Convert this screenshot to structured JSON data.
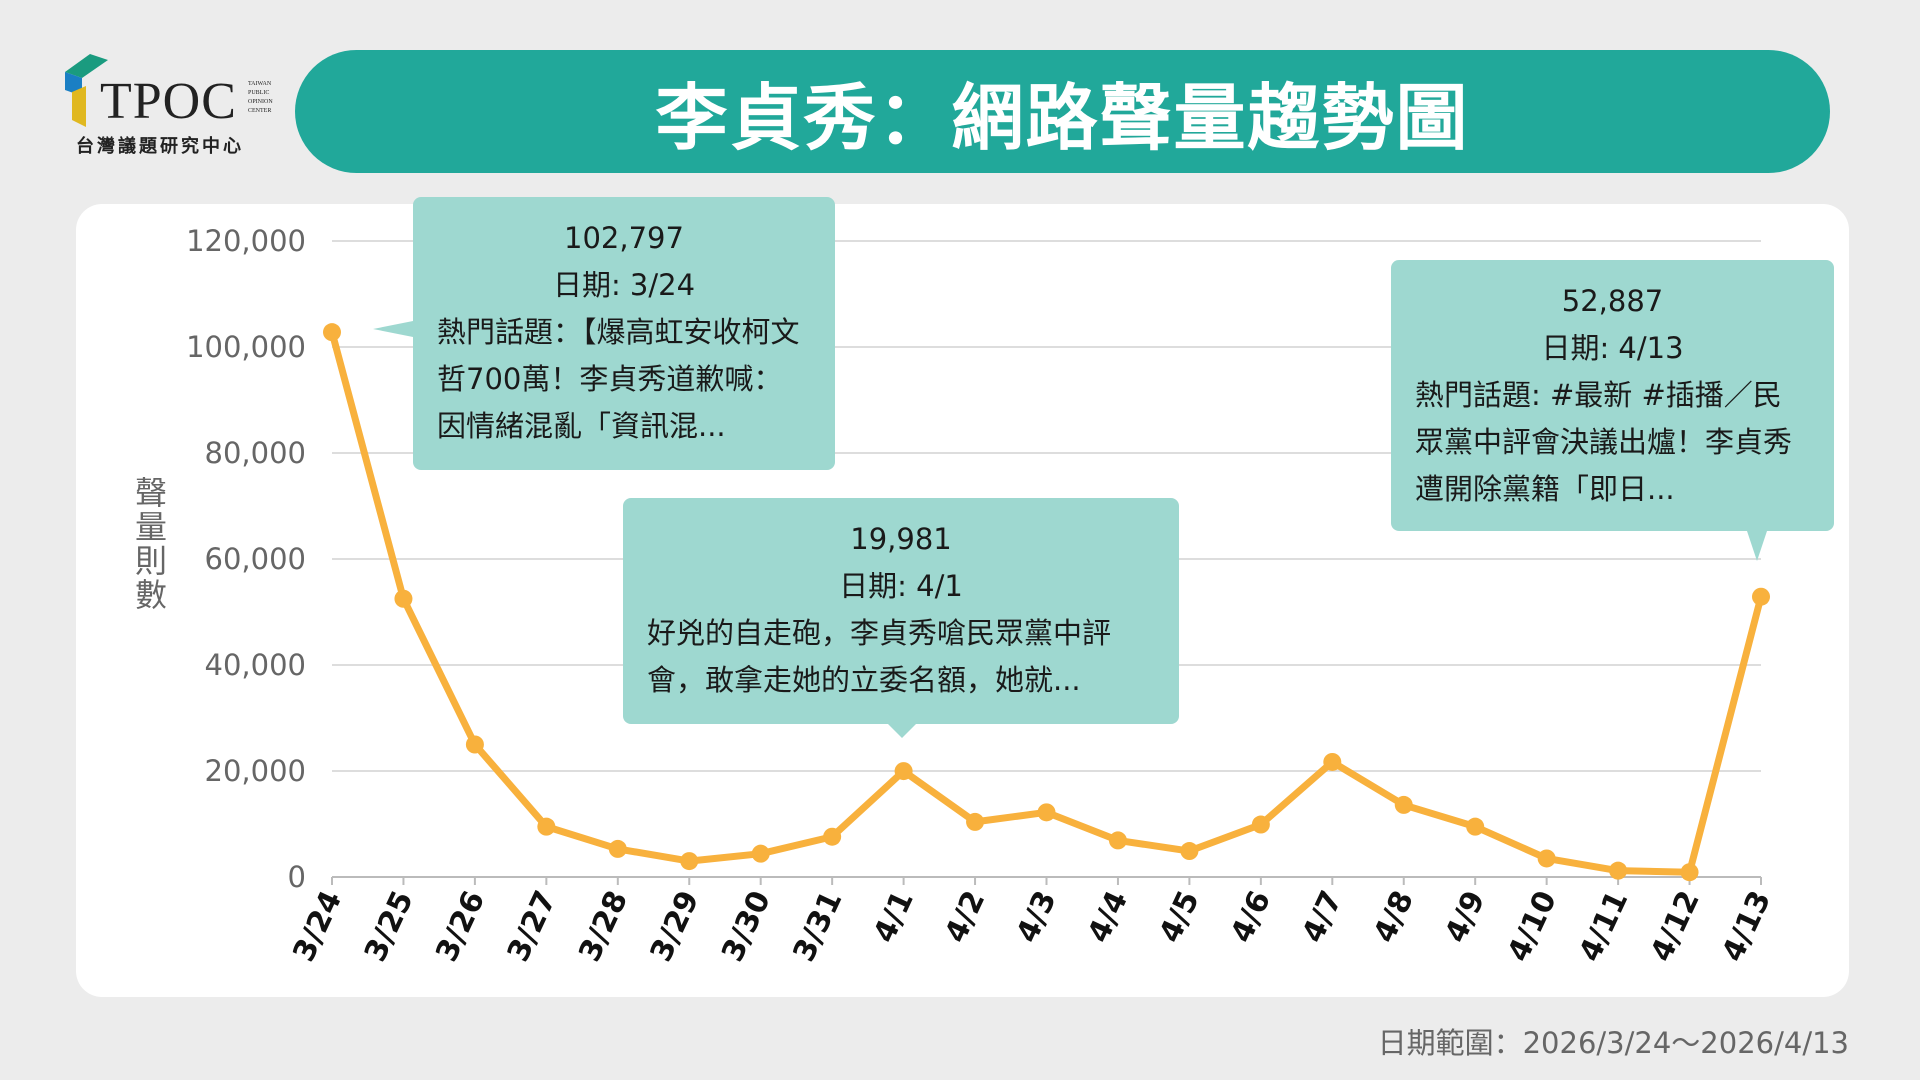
{
  "logo": {
    "name": "TPOC",
    "subtitle": "台灣議題研究中心",
    "tags": [
      "TAIWAN",
      "PUBLIC",
      "OPINION",
      "CENTER"
    ]
  },
  "header": {
    "title": "李貞秀：網路聲量趨勢圖"
  },
  "footer": {
    "date_range": "日期範圍：2026/3/24～2026/4/13"
  },
  "colors": {
    "accent": "#21a89a",
    "line": "#f8b13d",
    "tooltip": "#9ed8d0"
  },
  "tooltips": [
    {
      "value": "102,797",
      "date": "日期: 3/24",
      "topic": "熱門話題：【爆高虹安收柯文哲700萬！李貞秀道歉喊：因情緒混亂「資訊混..."
    },
    {
      "value": "19,981",
      "date": "日期: 4/1",
      "topic": "好兇的自走砲，李貞秀嗆民眾黨中評會，敢拿走她的立委名額，她就..."
    },
    {
      "value": "52,887",
      "date": "日期: 4/13",
      "topic": "熱門話題: #最新 #插播／民眾黨中評會決議出爐！李貞秀遭開除黨籍「即日..."
    }
  ],
  "chart_data": {
    "type": "line",
    "title": "李貞秀：網路聲量趨勢圖",
    "xlabel": "",
    "ylabel": "聲量則數",
    "ylim": [
      0,
      120000
    ],
    "yticks": [
      0,
      20000,
      40000,
      60000,
      80000,
      100000,
      120000
    ],
    "ytick_labels": [
      "0",
      "20,000",
      "40,000",
      "60,000",
      "80,000",
      "100,000",
      "120,000"
    ],
    "grid": true,
    "x": [
      "3/24",
      "3/25",
      "3/26",
      "3/27",
      "3/28",
      "3/29",
      "3/30",
      "3/31",
      "4/1",
      "4/2",
      "4/3",
      "4/4",
      "4/5",
      "4/6",
      "4/7",
      "4/8",
      "4/9",
      "4/10",
      "4/11",
      "4/12",
      "4/13"
    ],
    "series": [
      {
        "name": "聲量",
        "values": [
          102797,
          52500,
          25000,
          9500,
          5300,
          3000,
          4400,
          7600,
          19981,
          10400,
          12200,
          6900,
          4900,
          9900,
          21700,
          13600,
          9500,
          3500,
          1200,
          900,
          52887
        ]
      }
    ]
  }
}
